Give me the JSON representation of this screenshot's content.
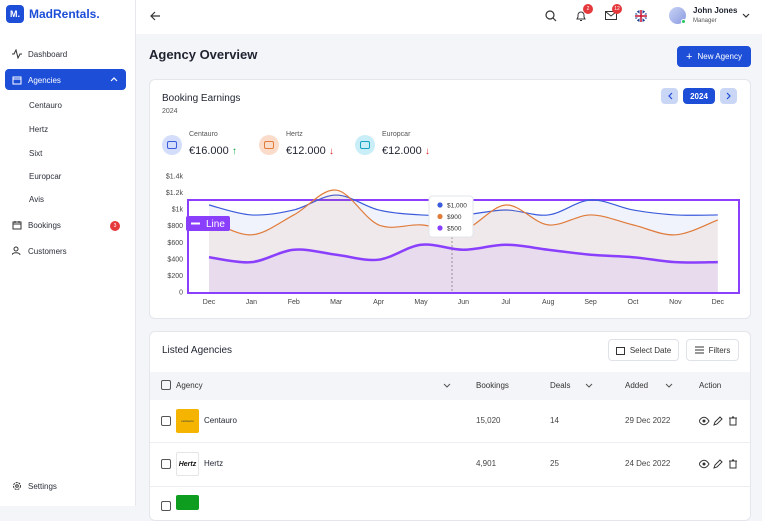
{
  "brand": {
    "logo": "M.",
    "name": "MadRentals."
  },
  "sidebar": {
    "nav": [
      "Dashboard",
      "Agencies"
    ],
    "agencies": [
      "Centauro",
      "Hertz",
      "Sixt",
      "Europcar",
      "Avis"
    ],
    "nav2": [
      "Bookings",
      "Customers"
    ],
    "bookings_badge": "3",
    "settings": "Settings"
  },
  "topbar": {
    "bell_badge": "2",
    "mail_badge": "12",
    "user_name": "John Jones",
    "user_role": "Manager"
  },
  "page_title": "Agency Overview",
  "new_button": "New Agency",
  "earnings": {
    "title": "Booking Earnings",
    "subtitle": "2024",
    "year": "2024",
    "stats": [
      {
        "name": "Centauro",
        "value": "€16.000"
      },
      {
        "name": "Hertz",
        "value": "€12.000"
      },
      {
        "name": "Europcar",
        "value": "€12.000"
      }
    ]
  },
  "chart_data": {
    "type": "line",
    "categories": [
      "Dec",
      "Jan",
      "Feb",
      "Mar",
      "Apr",
      "May",
      "Jun",
      "Jul",
      "Aug",
      "Sep",
      "Oct",
      "Nov",
      "Dec"
    ],
    "series": [
      {
        "color": "#3b5bdb",
        "values": [
          1050,
          930,
          990,
          1170,
          990,
          930,
          930,
          990,
          930,
          1110,
          990,
          930,
          930
        ]
      },
      {
        "color": "#e07b39",
        "values": [
          870,
          690,
          930,
          1230,
          810,
          810,
          750,
          1050,
          810,
          930,
          810,
          690,
          870
        ]
      },
      {
        "color": "#8a3ffc",
        "values": [
          420,
          360,
          510,
          450,
          390,
          570,
          510,
          570,
          510,
          450,
          420,
          360,
          360
        ]
      }
    ],
    "ylim": [
      0,
      1400
    ],
    "yticks": [
      0,
      {
        "value": 200,
        "label": "$200"
      },
      {
        "value": 400,
        "label": "$400"
      },
      {
        "value": 600,
        "label": "$600"
      },
      {
        "value": 800,
        "label": "$800"
      },
      {
        "value": 1000,
        "label": "$1k"
      },
      {
        "value": 1200,
        "label": "$1.2k"
      },
      {
        "value": 1400,
        "label": "$1.4k"
      }
    ],
    "annotation": "Line",
    "tooltip": [
      "$1,000",
      "$900",
      "$500"
    ]
  },
  "table": {
    "title": "Listed Agencies",
    "select_date": "Select Date",
    "filters": "Filters",
    "columns": [
      "Agency",
      "Bookings",
      "Deals",
      "Added",
      "Action"
    ],
    "rows": [
      [
        "Centauro",
        "15,020",
        "14",
        "29 Dec 2022"
      ],
      [
        "Hertz",
        "4,901",
        "25",
        "24 Dec 2022"
      ]
    ],
    "logos": [
      "centauro",
      "Hertz"
    ]
  }
}
